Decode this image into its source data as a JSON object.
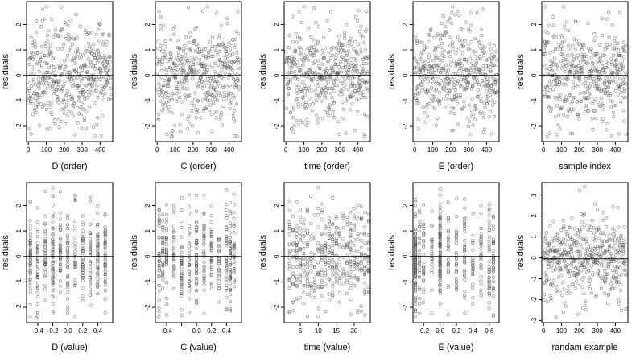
{
  "chart_data": [
    {
      "id": "p1",
      "type": "scatter",
      "xlabel": "D (order)",
      "ylabel": "residuals",
      "xlim": [
        -10,
        470
      ],
      "ylim": [
        -2.6,
        2.9
      ],
      "xticks": [
        0,
        100,
        200,
        300,
        400
      ],
      "xtick_labels": [
        "0",
        "100",
        "200",
        "300",
        "400"
      ],
      "yticks": [
        -2,
        -1,
        0,
        1,
        2
      ],
      "ytick_labels": [
        "-2",
        "-1",
        "0",
        "1",
        "2"
      ],
      "hline": 0,
      "pattern": "index",
      "n_points": 460,
      "seed": 11,
      "points": [
        [
          15,
          -2.3
        ],
        [
          80,
          2.6
        ],
        [
          100,
          2.7
        ],
        [
          150,
          -1.9
        ],
        [
          250,
          -1.6
        ],
        [
          320,
          1.7
        ],
        [
          400,
          2.0
        ],
        [
          420,
          1.3
        ]
      ]
    },
    {
      "id": "p2",
      "type": "scatter",
      "xlabel": "C (order)",
      "ylabel": "residuals",
      "xlim": [
        -10,
        470
      ],
      "ylim": [
        -2.6,
        2.9
      ],
      "xticks": [
        0,
        100,
        200,
        300,
        400
      ],
      "xtick_labels": [
        "0",
        "100",
        "200",
        "300",
        "400"
      ],
      "yticks": [
        -2,
        -1,
        0,
        1,
        2
      ],
      "ytick_labels": [
        "-2",
        "-1",
        "0",
        "1",
        "2"
      ],
      "hline": 0,
      "pattern": "index",
      "n_points": 460,
      "seed": 22,
      "points": [
        [
          20,
          2.3
        ],
        [
          80,
          -2.4
        ],
        [
          170,
          -2.1
        ],
        [
          280,
          2.7
        ],
        [
          430,
          -1.8
        ]
      ]
    },
    {
      "id": "p3",
      "type": "scatter",
      "xlabel": "time (order)",
      "ylabel": "residuals",
      "xlim": [
        -10,
        470
      ],
      "ylim": [
        -2.6,
        2.9
      ],
      "xticks": [
        0,
        100,
        200,
        300,
        400
      ],
      "xtick_labels": [
        "0",
        "100",
        "200",
        "300",
        "400"
      ],
      "yticks": [
        -2,
        -1,
        0,
        1,
        2
      ],
      "ytick_labels": [
        "-2",
        "-1",
        "0",
        "1",
        "2"
      ],
      "hline": 0,
      "pattern": "index",
      "n_points": 460,
      "seed": 33,
      "points": [
        [
          100,
          2.7
        ],
        [
          250,
          2.5
        ],
        [
          30,
          -2.1
        ],
        [
          440,
          -2.4
        ],
        [
          320,
          -1.7
        ]
      ]
    },
    {
      "id": "p4",
      "type": "scatter",
      "xlabel": "E (order)",
      "ylabel": "residuals",
      "xlim": [
        -10,
        470
      ],
      "ylim": [
        -2.6,
        2.9
      ],
      "xticks": [
        0,
        100,
        200,
        300,
        400
      ],
      "xtick_labels": [
        "0",
        "100",
        "200",
        "300",
        "400"
      ],
      "yticks": [
        -2,
        -1,
        0,
        1,
        2
      ],
      "ytick_labels": [
        "-2",
        "-1",
        "0",
        "1",
        "2"
      ],
      "hline": 0,
      "pattern": "index",
      "n_points": 460,
      "seed": 44,
      "points": [
        [
          210,
          2.7
        ],
        [
          380,
          2.6
        ],
        [
          20,
          -2.1
        ],
        [
          300,
          -2.0
        ],
        [
          430,
          -2.3
        ]
      ]
    },
    {
      "id": "p5",
      "type": "scatter",
      "xlabel": "sample index",
      "ylabel": "residuals",
      "xlim": [
        -10,
        470
      ],
      "ylim": [
        -2.6,
        2.9
      ],
      "xticks": [
        0,
        100,
        200,
        300,
        400
      ],
      "xtick_labels": [
        "0",
        "100",
        "200",
        "300",
        "400"
      ],
      "yticks": [
        -2,
        -1,
        0,
        1,
        2
      ],
      "ytick_labels": [
        "-2",
        "-1",
        "0",
        "1",
        "2"
      ],
      "hline": 0,
      "pattern": "index",
      "n_points": 460,
      "seed": 55,
      "points": [
        [
          10,
          2.7
        ],
        [
          110,
          2.7
        ],
        [
          20,
          -2.4
        ],
        [
          420,
          -2.3
        ],
        [
          450,
          -1.8
        ]
      ]
    },
    {
      "id": "p6",
      "type": "scatter",
      "xlabel": "D (value)",
      "ylabel": "residuals",
      "xlim": [
        -0.55,
        0.6
      ],
      "ylim": [
        -2.6,
        2.9
      ],
      "xticks": [
        -0.4,
        -0.2,
        0.0,
        0.2,
        0.4
      ],
      "xtick_labels": [
        "-0.4",
        "-0.2",
        "0.0",
        "0.2",
        "0.4"
      ],
      "yticks": [
        -2,
        -1,
        0,
        1,
        2
      ],
      "ytick_labels": [
        "-2",
        "-1",
        "0",
        "1",
        "2"
      ],
      "hline": 0,
      "pattern": "columns",
      "n_points": 460,
      "seed": 66,
      "columns": [
        -0.5,
        -0.4,
        -0.3,
        -0.2,
        -0.1,
        0.0,
        0.1,
        0.2,
        0.3,
        0.4,
        0.5
      ],
      "points": [
        [
          -0.42,
          -2.4
        ],
        [
          -0.2,
          2.4
        ],
        [
          0.0,
          -2.1
        ],
        [
          0.1,
          2.2
        ]
      ]
    },
    {
      "id": "p7",
      "type": "scatter",
      "xlabel": "C (value)",
      "ylabel": "residuals",
      "xlim": [
        -0.55,
        0.6
      ],
      "ylim": [
        -2.6,
        2.9
      ],
      "xticks": [
        -0.4,
        -0.2,
        0.0,
        0.2,
        0.4
      ],
      "xtick_labels": [
        "-0.4",
        "",
        "0.0",
        "0.2",
        "0.4"
      ],
      "yticks": [
        -2,
        -1,
        0,
        1,
        2
      ],
      "ytick_labels": [
        "-2",
        "-1",
        "0",
        "1",
        "2"
      ],
      "hline": 0,
      "pattern": "columns",
      "n_points": 460,
      "seed": 77,
      "columns": [
        -0.5,
        -0.45,
        -0.4,
        -0.3,
        -0.2,
        -0.1,
        0.0,
        0.1,
        0.2,
        0.3,
        0.4,
        0.45,
        0.5
      ],
      "points": [
        [
          -0.4,
          -2.3
        ],
        [
          -0.2,
          -2.1
        ],
        [
          0.4,
          2.6
        ],
        [
          0.0,
          2.4
        ]
      ]
    },
    {
      "id": "p8",
      "type": "scatter",
      "xlabel": "time (value)",
      "ylabel": "residuals",
      "xlim": [
        0.5,
        24.5
      ],
      "ylim": [
        -2.6,
        2.9
      ],
      "xticks": [
        5,
        10,
        15,
        20
      ],
      "xtick_labels": [
        "5",
        "10",
        "15",
        "20"
      ],
      "yticks": [
        -2,
        -1,
        0,
        1,
        2
      ],
      "ytick_labels": [
        "-2",
        "-1",
        "0",
        "1",
        "2"
      ],
      "hline": 0,
      "pattern": "columns",
      "n_points": 460,
      "seed": 88,
      "columns": [
        2,
        3,
        4,
        5,
        6,
        7,
        8,
        9,
        10,
        11,
        12,
        13,
        14,
        15,
        16,
        17,
        18,
        19,
        20,
        21,
        22,
        23,
        24
      ],
      "points": [
        [
          10,
          2.7
        ],
        [
          2,
          -2.2
        ],
        [
          23,
          -2.3
        ],
        [
          14,
          2.3
        ]
      ]
    },
    {
      "id": "p9",
      "type": "scatter",
      "xlabel": "E (value)",
      "ylabel": "residuals",
      "xlim": [
        -0.33,
        0.72
      ],
      "ylim": [
        -2.6,
        2.9
      ],
      "xticks": [
        -0.2,
        0.0,
        0.2,
        0.4,
        0.6
      ],
      "xtick_labels": [
        "-0.2",
        "0.0",
        "0.2",
        "0.4",
        "0.6"
      ],
      "yticks": [
        -2,
        -1,
        0,
        1,
        2
      ],
      "ytick_labels": [
        "-2",
        "-1",
        "0",
        "1",
        "2"
      ],
      "hline": 0,
      "pattern": "columns",
      "n_points": 460,
      "seed": 99,
      "columns": [
        -0.3,
        -0.3,
        -0.3,
        -0.25,
        -0.2,
        -0.1,
        0.0,
        0.0,
        0.0,
        0.1,
        0.2,
        0.3,
        0.4,
        0.5,
        0.6,
        0.65
      ],
      "points": [
        [
          -0.3,
          2.0
        ],
        [
          0.0,
          2.4
        ],
        [
          0.65,
          -2.3
        ],
        [
          -0.3,
          -2.1
        ]
      ]
    },
    {
      "id": "p10",
      "type": "scatter",
      "xlabel": "randam example",
      "ylabel": "residuals",
      "xlim": [
        -10,
        470
      ],
      "ylim": [
        -3.1,
        3.6
      ],
      "xticks": [
        0,
        100,
        200,
        300,
        400
      ],
      "xtick_labels": [
        "0",
        "100",
        "200",
        "300",
        "400"
      ],
      "yticks": [
        -3,
        -2,
        -1,
        0,
        1,
        2,
        3
      ],
      "ytick_labels": [
        "-3",
        "-2",
        "-1",
        "0",
        "1",
        "2",
        "3"
      ],
      "hline": -0.05,
      "pattern": "index",
      "n_points": 460,
      "seed": 111,
      "points": [
        [
          230,
          3.4
        ],
        [
          200,
          3.2
        ],
        [
          110,
          -2.6
        ],
        [
          190,
          -2.7
        ],
        [
          420,
          -2.2
        ]
      ]
    }
  ]
}
